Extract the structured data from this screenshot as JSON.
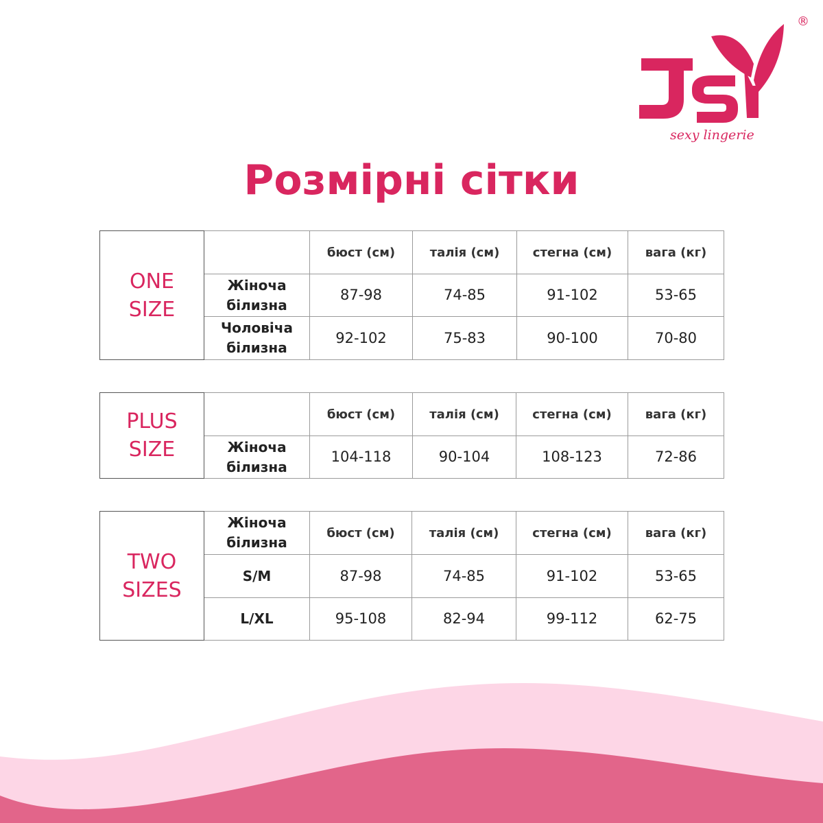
{
  "brand": {
    "logo_text": "JSY",
    "tagline": "sexy lingerie",
    "registered_mark": "®",
    "color": "#d9265f"
  },
  "title": "Розмірні сітки",
  "colors": {
    "accent": "#d9265f",
    "wave_light": "#fdd6e6",
    "wave_dark": "#e2658a"
  },
  "tables": [
    {
      "group": [
        "ONE",
        "SIZE"
      ],
      "headers": [
        "",
        "бюст (см)",
        "талія (см)",
        "стегна (см)",
        "вага (кг)"
      ],
      "rows": [
        {
          "label": [
            "Жіноча",
            "білизна"
          ],
          "values": [
            "87-98",
            "74-85",
            "91-102",
            "53-65"
          ]
        },
        {
          "label": [
            "Чоловіча",
            "білизна"
          ],
          "values": [
            "92-102",
            "75-83",
            "90-100",
            "70-80"
          ]
        }
      ]
    },
    {
      "group": [
        "PLUS",
        "SIZE"
      ],
      "headers": [
        "",
        "бюст (см)",
        "талія (см)",
        "стегна (см)",
        "вага (кг)"
      ],
      "rows": [
        {
          "label": [
            "Жіноча",
            "білизна"
          ],
          "values": [
            "104-118",
            "90-104",
            "108-123",
            "72-86"
          ]
        }
      ]
    },
    {
      "group": [
        "TWO",
        "SIZES"
      ],
      "headers": [
        "Жіноча білизна",
        "бюст (см)",
        "талія (см)",
        "стегна (см)",
        "вага (кг)"
      ],
      "header_label": [
        "Жіноча",
        "білизна"
      ],
      "rows": [
        {
          "label": [
            "S/M"
          ],
          "values": [
            "87-98",
            "74-85",
            "91-102",
            "53-65"
          ]
        },
        {
          "label": [
            "L/XL"
          ],
          "values": [
            "95-108",
            "82-94",
            "99-112",
            "62-75"
          ]
        }
      ]
    }
  ]
}
